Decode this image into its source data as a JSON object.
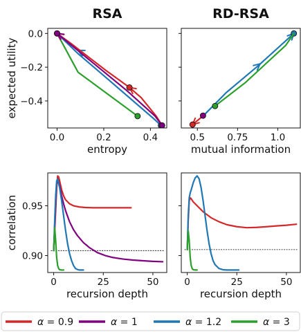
{
  "colors": {
    "a0.9": "#d62728",
    "a1": "#800080",
    "a1.2": "#1f77b4",
    "a3": "#2ca02c"
  },
  "legend": [
    {
      "key": "a0.9",
      "sym": "α",
      "text": " = 0.9"
    },
    {
      "key": "a1",
      "sym": "α",
      "text": " = 1"
    },
    {
      "key": "a1.2",
      "sym": "α",
      "text": " = 1.2"
    },
    {
      "key": "a3",
      "sym": "α",
      "text": " = 3"
    }
  ],
  "chart_data": [
    {
      "id": "rsa-top",
      "type": "line",
      "title": "RSA",
      "xlabel": "entropy",
      "ylabel": "expected utility",
      "xlim": [
        -0.04,
        0.47
      ],
      "ylim": [
        -0.56,
        0.03
      ],
      "xticks": [
        0.0,
        0.2,
        0.4
      ],
      "xticklabels": [
        "0.0",
        "0.2",
        "0.4"
      ],
      "yticks": [
        0.0,
        -0.2,
        -0.4
      ],
      "yticklabels": [
        "0.0",
        "−0.2",
        "−0.4"
      ],
      "series": [
        {
          "key": "a3",
          "points": [
            [
              0.0,
              0.0
            ],
            [
              0.09,
              -0.23
            ],
            [
              0.345,
              -0.49
            ]
          ],
          "markers": [
            [
              0.0,
              0.0
            ],
            [
              0.345,
              -0.49
            ]
          ],
          "arrows": []
        },
        {
          "key": "a1.2",
          "points": [
            [
              0.445,
              -0.545
            ],
            [
              0.41,
              -0.5
            ],
            [
              0.2,
              -0.25
            ],
            [
              0.09,
              -0.12
            ],
            [
              0.0,
              0.0
            ]
          ],
          "markers": [
            [
              0.445,
              -0.545
            ]
          ],
          "arrows": [
            [
              [
                0.14,
                -0.135
              ],
              [
                0.09,
                -0.1
              ]
            ]
          ]
        },
        {
          "key": "a0.9",
          "points": [
            [
              0.45,
              -0.545
            ],
            [
              0.425,
              -0.49
            ],
            [
              0.36,
              -0.38
            ],
            [
              0.31,
              -0.32
            ],
            [
              0.21,
              -0.22
            ],
            [
              0.06,
              -0.06
            ],
            [
              0.0,
              0.0
            ]
          ],
          "markers": [
            [
              0.31,
              -0.32
            ]
          ],
          "arrows": [
            [
              [
                0.35,
                -0.36
              ],
              [
                0.31,
                -0.32
              ]
            ],
            [
              [
                0.03,
                -0.03
              ],
              [
                0.0,
                0.0
              ]
            ]
          ]
        },
        {
          "key": "a1",
          "points": [
            [
              0.45,
              -0.545
            ],
            [
              0.42,
              -0.49
            ],
            [
              0.3,
              -0.34
            ],
            [
              0.15,
              -0.17
            ],
            [
              0.0,
              0.0
            ]
          ],
          "markers": [
            [
              0.45,
              -0.545
            ],
            [
              0.0,
              0.0
            ]
          ],
          "arrows": [
            [
              [
                0.04,
                -0.035
              ],
              [
                0.0,
                0.0
              ]
            ]
          ]
        }
      ]
    },
    {
      "id": "rdrsa-top",
      "type": "line",
      "title": "RD-RSA",
      "xlabel": "mutual information",
      "ylabel": "",
      "xlim": [
        0.4,
        1.14
      ],
      "ylim": [
        -0.56,
        0.03
      ],
      "xticks": [
        0.5,
        0.75,
        1.0
      ],
      "xticklabels": [
        "0.5",
        "0.75",
        "1.0"
      ],
      "yticks": [
        0.0,
        -0.2,
        -0.4
      ],
      "yticklabels": [],
      "series": [
        {
          "key": "a1.2",
          "points": [
            [
              0.54,
              -0.485
            ],
            [
              0.68,
              -0.35
            ],
            [
              0.88,
              -0.19
            ],
            [
              1.1,
              0.0
            ]
          ],
          "markers": [
            [
              1.1,
              0.0
            ]
          ],
          "arrows": [
            [
              [
                0.84,
                -0.22
              ],
              [
                0.89,
                -0.18
              ]
            ],
            [
              [
                1.06,
                -0.04
              ],
              [
                1.1,
                0.0
              ]
            ]
          ]
        },
        {
          "key": "a3",
          "points": [
            [
              0.61,
              -0.43
            ],
            [
              0.8,
              -0.29
            ],
            [
              1.05,
              -0.07
            ],
            [
              1.1,
              0.0
            ]
          ],
          "markers": [
            [
              0.61,
              -0.43
            ]
          ],
          "arrows": []
        },
        {
          "key": "a0.9",
          "points": [
            [
              0.54,
              -0.485
            ],
            [
              0.47,
              -0.54
            ]
          ],
          "markers": [
            [
              0.47,
              -0.54
            ]
          ],
          "arrows": [
            [
              [
                0.5,
                -0.515
              ],
              [
                0.47,
                -0.54
              ]
            ]
          ]
        },
        {
          "key": "a1",
          "points": [
            [
              0.54,
              -0.485
            ],
            [
              0.53,
              -0.49
            ]
          ],
          "markers": [
            [
              0.535,
              -0.487
            ]
          ],
          "arrows": []
        }
      ]
    },
    {
      "id": "rsa-bottom",
      "type": "line",
      "title": "",
      "xlabel": "recursion depth",
      "ylabel": "correlation",
      "xlim": [
        -3,
        57
      ],
      "ylim": [
        0.883,
        0.983
      ],
      "xticks": [
        0,
        25,
        50
      ],
      "xticklabels": [
        "0",
        "25",
        "50"
      ],
      "yticks": [
        0.9,
        0.95
      ],
      "yticklabels": [
        "0.90",
        "0.95"
      ],
      "baseline": 0.905,
      "series": [
        {
          "key": "a0.9",
          "x": [
            0,
            0.5,
            1,
            1.5,
            2,
            2.5,
            3,
            4,
            5,
            6,
            8,
            10,
            13,
            16,
            20,
            25,
            30,
            35,
            39
          ],
          "y": [
            0.905,
            0.925,
            0.945,
            0.968,
            0.98,
            0.979,
            0.975,
            0.966,
            0.96,
            0.956,
            0.952,
            0.95,
            0.9488,
            0.9483,
            0.948,
            0.948,
            0.948,
            0.948,
            0.948
          ]
        },
        {
          "key": "a1",
          "x": [
            0,
            0.5,
            1,
            1.5,
            2,
            3,
            4,
            5,
            6,
            8,
            10,
            12,
            15,
            18,
            22,
            26,
            30,
            35,
            40,
            45,
            50,
            55
          ],
          "y": [
            0.905,
            0.93,
            0.955,
            0.972,
            0.977,
            0.97,
            0.96,
            0.952,
            0.945,
            0.934,
            0.926,
            0.92,
            0.913,
            0.908,
            0.903,
            0.9,
            0.898,
            0.8965,
            0.8955,
            0.8948,
            0.8942,
            0.8938
          ]
        },
        {
          "key": "a1.2",
          "x": [
            0,
            0.5,
            1,
            1.5,
            2,
            3,
            4,
            5,
            6,
            7,
            8,
            9,
            10,
            11,
            12,
            13,
            14,
            15
          ],
          "y": [
            0.905,
            0.935,
            0.96,
            0.975,
            0.977,
            0.968,
            0.955,
            0.94,
            0.925,
            0.912,
            0.902,
            0.895,
            0.89,
            0.887,
            0.886,
            0.8855,
            0.8855,
            0.8855
          ]
        },
        {
          "key": "a3",
          "x": [
            0,
            0.5,
            1,
            1.5,
            2,
            2.5,
            3,
            4,
            5
          ],
          "y": [
            0.905,
            0.928,
            0.915,
            0.898,
            0.89,
            0.887,
            0.8858,
            0.8855,
            0.8855
          ]
        }
      ]
    },
    {
      "id": "rdrsa-bottom",
      "type": "line",
      "title": "",
      "xlabel": "recursion depth",
      "ylabel": "",
      "xlim": [
        -3,
        57
      ],
      "ylim": [
        0.883,
        0.983
      ],
      "xticks": [
        0,
        25,
        50
      ],
      "xticklabels": [
        "0",
        "25",
        "50"
      ],
      "yticks": [
        0.9,
        0.95
      ],
      "yticklabels": [],
      "baseline": 0.906,
      "series": [
        {
          "key": "a0.9",
          "x": [
            0,
            0.5,
            1,
            1.5,
            2,
            3,
            5,
            8,
            12,
            16,
            20,
            25,
            30,
            35,
            40,
            45,
            50,
            55
          ],
          "y": [
            0.906,
            0.935,
            0.955,
            0.958,
            0.957,
            0.954,
            0.95,
            0.944,
            0.938,
            0.934,
            0.931,
            0.929,
            0.928,
            0.9283,
            0.929,
            0.9298,
            0.9305,
            0.9315
          ]
        },
        {
          "key": "a1.2",
          "x": [
            0,
            0.5,
            1,
            1.5,
            2,
            3,
            4,
            5,
            6,
            7,
            8,
            9,
            10,
            11,
            12,
            13,
            14,
            16,
            18,
            20,
            22,
            24,
            26
          ],
          "y": [
            0.906,
            0.94,
            0.958,
            0.963,
            0.966,
            0.973,
            0.978,
            0.98,
            0.977,
            0.968,
            0.955,
            0.94,
            0.925,
            0.912,
            0.902,
            0.895,
            0.891,
            0.887,
            0.8858,
            0.8855,
            0.8855,
            0.8855,
            0.8855
          ]
        },
        {
          "key": "a3",
          "x": [
            0,
            0.5,
            1,
            1.5,
            2,
            2.5,
            3,
            4,
            5
          ],
          "y": [
            0.906,
            0.925,
            0.915,
            0.898,
            0.89,
            0.887,
            0.8858,
            0.8855,
            0.8855
          ]
        }
      ]
    }
  ]
}
